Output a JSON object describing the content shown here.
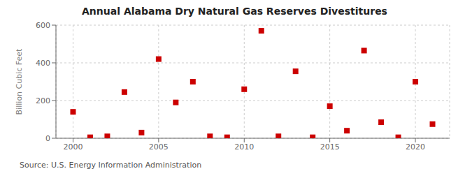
{
  "chart_data": {
    "type": "scatter",
    "title": "Annual Alabama Dry Natural Gas Reserves Divestitures",
    "y_label": "Billion Cubic Feet",
    "annotations": [
      "Source: U.S. Energy Information Administration"
    ],
    "x": [
      2000,
      2001,
      2002,
      2003,
      2004,
      2005,
      2006,
      2007,
      2008,
      2009,
      2010,
      2011,
      2012,
      2013,
      2014,
      2015,
      2016,
      2017,
      2018,
      2019,
      2020,
      2021
    ],
    "values": [
      140,
      5,
      10,
      245,
      30,
      420,
      190,
      300,
      10,
      5,
      260,
      570,
      10,
      355,
      5,
      170,
      40,
      465,
      85,
      5,
      300,
      75
    ],
    "color": "#cc0000",
    "marker": "square",
    "xlim": [
      1999,
      2022
    ],
    "xticks": [
      2000,
      2005,
      2010,
      2015,
      2020
    ],
    "ylim": [
      0,
      600
    ],
    "yticks": [
      0,
      200,
      400,
      600
    ],
    "grid": true
  }
}
